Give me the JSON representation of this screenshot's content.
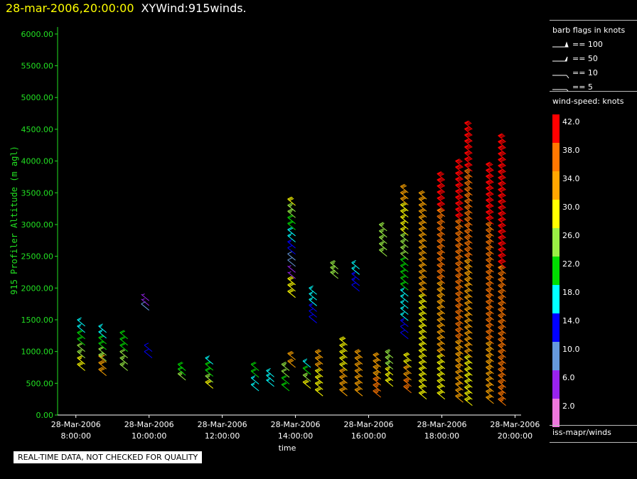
{
  "header": {
    "datetime": "28-mar-2006,20:00:00",
    "product": "XYWind:915winds."
  },
  "legend": {
    "barb_title": "barb flags in knots",
    "barbs": [
      {
        "label": "== 100",
        "knots": 100
      },
      {
        "label": "== 50",
        "knots": 50
      },
      {
        "label": "== 10",
        "knots": 10
      },
      {
        "label": "== 5",
        "knots": 5
      }
    ],
    "colorbar_title": "wind-speed: knots",
    "colorbar": [
      {
        "label": "42.0",
        "color": "#ff0000"
      },
      {
        "label": "38.0",
        "color": "#ff7700"
      },
      {
        "label": "34.0",
        "color": "#ffa500"
      },
      {
        "label": "30.0",
        "color": "#ffff00"
      },
      {
        "label": "26.0",
        "color": "#99ee44"
      },
      {
        "label": "22.0",
        "color": "#00dd00"
      },
      {
        "label": "18.0",
        "color": "#00ffff"
      },
      {
        "label": "14.0",
        "color": "#0000ff"
      },
      {
        "label": "10.0",
        "color": "#6699dd"
      },
      {
        "label": "6.0",
        "color": "#9922ee"
      },
      {
        "label": "2.0",
        "color": "#ee77dd"
      }
    ],
    "source": "iss-mapr/winds"
  },
  "warning": "REAL-TIME DATA, NOT CHECKED FOR QUALITY",
  "chart_data": {
    "type": "scatter",
    "title": "28-mar-2006,20:00:00 XYWind:915winds.",
    "xlabel": "time",
    "ylabel": "915 Profiler Altitude (m agl)",
    "xlim": [
      "2006-03-28 07:30",
      "2006-03-28 20:10"
    ],
    "ylim": [
      0,
      6200
    ],
    "yticks": [
      "0.00",
      "500.00",
      "1000.00",
      "1500.00",
      "2000.00",
      "2500.00",
      "3000.00",
      "3500.00",
      "4000.00",
      "4500.00",
      "5000.00",
      "5500.00",
      "6000.00"
    ],
    "xticks": [
      {
        "date": "28-Mar-2006",
        "time": "8:00:00"
      },
      {
        "date": "28-Mar-2006",
        "time": "10:00:00"
      },
      {
        "date": "28-Mar-2006",
        "time": "12:00:00"
      },
      {
        "date": "28-Mar-2006",
        "time": "14:00:00"
      },
      {
        "date": "28-Mar-2006",
        "time": "16:00:00"
      },
      {
        "date": "28-Mar-2006",
        "time": "18:00:00"
      },
      {
        "date": "28-Mar-2006",
        "time": "20:00:00"
      }
    ],
    "profiles": [
      {
        "time": "08:15",
        "min_alt": 700,
        "max_alt": 1400,
        "speed_low": 30,
        "speed_high": 18
      },
      {
        "time": "08:50",
        "min_alt": 620,
        "max_alt": 830,
        "speed_low": 34,
        "speed_high": 34
      },
      {
        "time": "08:50",
        "min_alt": 850,
        "max_alt": 1300,
        "speed_low": 26,
        "speed_high": 18
      },
      {
        "time": "09:25",
        "min_alt": 700,
        "max_alt": 1200,
        "speed_low": 26,
        "speed_high": 22
      },
      {
        "time": "10:00",
        "min_alt": 1650,
        "max_alt": 1800,
        "speed_low": 10,
        "speed_high": 6
      },
      {
        "time": "10:05",
        "min_alt": 900,
        "max_alt": 1000,
        "speed_low": 14,
        "speed_high": 14
      },
      {
        "time": "11:00",
        "min_alt": 550,
        "max_alt": 700,
        "speed_low": 26,
        "speed_high": 22
      },
      {
        "time": "11:45",
        "min_alt": 420,
        "max_alt": 800,
        "speed_low": 30,
        "speed_high": 18
      },
      {
        "time": "13:00",
        "min_alt": 380,
        "max_alt": 700,
        "speed_low": 18,
        "speed_high": 22
      },
      {
        "time": "13:25",
        "min_alt": 450,
        "max_alt": 600,
        "speed_low": 18,
        "speed_high": 18
      },
      {
        "time": "13:50",
        "min_alt": 380,
        "max_alt": 700,
        "speed_low": 22,
        "speed_high": 26
      },
      {
        "time": "14:00",
        "min_alt": 2150,
        "max_alt": 3300,
        "speed_low": 6,
        "speed_high": 30
      },
      {
        "time": "14:00",
        "min_alt": 1850,
        "max_alt": 2050,
        "speed_low": 30,
        "speed_high": 30
      },
      {
        "time": "14:00",
        "min_alt": 750,
        "max_alt": 870,
        "speed_low": 34,
        "speed_high": 34
      },
      {
        "time": "14:25",
        "min_alt": 420,
        "max_alt": 750,
        "speed_low": 30,
        "speed_high": 18
      },
      {
        "time": "14:35",
        "min_alt": 1450,
        "max_alt": 1900,
        "speed_low": 14,
        "speed_high": 18
      },
      {
        "time": "14:45",
        "min_alt": 300,
        "max_alt": 900,
        "speed_low": 30,
        "speed_high": 34
      },
      {
        "time": "15:10",
        "min_alt": 2150,
        "max_alt": 2300,
        "speed_low": 26,
        "speed_high": 26
      },
      {
        "time": "15:25",
        "min_alt": 300,
        "max_alt": 1100,
        "speed_low": 34,
        "speed_high": 30
      },
      {
        "time": "15:45",
        "min_alt": 1950,
        "max_alt": 2300,
        "speed_low": 14,
        "speed_high": 18
      },
      {
        "time": "15:50",
        "min_alt": 300,
        "max_alt": 900,
        "speed_low": 34,
        "speed_high": 34
      },
      {
        "time": "16:20",
        "min_alt": 280,
        "max_alt": 850,
        "speed_low": 38,
        "speed_high": 34
      },
      {
        "time": "16:30",
        "min_alt": 2500,
        "max_alt": 2900,
        "speed_low": 26,
        "speed_high": 26
      },
      {
        "time": "16:40",
        "min_alt": 450,
        "max_alt": 900,
        "speed_low": 30,
        "speed_high": 26
      },
      {
        "time": "17:05",
        "min_alt": 1200,
        "max_alt": 3500,
        "speed_low": 14,
        "speed_high": 34
      },
      {
        "time": "17:10",
        "min_alt": 350,
        "max_alt": 850,
        "speed_low": 38,
        "speed_high": 30
      },
      {
        "time": "17:35",
        "min_alt": 250,
        "max_alt": 3400,
        "speed_low": 30,
        "speed_high": 34
      },
      {
        "time": "18:05",
        "min_alt": 250,
        "max_alt": 3700,
        "speed_low": 30,
        "speed_high": 42
      },
      {
        "time": "18:35",
        "min_alt": 200,
        "max_alt": 3900,
        "speed_low": 34,
        "speed_high": 42
      },
      {
        "time": "18:50",
        "min_alt": 150,
        "max_alt": 4500,
        "speed_low": 30,
        "speed_high": 42
      },
      {
        "time": "19:25",
        "min_alt": 180,
        "max_alt": 3850,
        "speed_low": 34,
        "speed_high": 42
      },
      {
        "time": "19:45",
        "min_alt": 150,
        "max_alt": 4300,
        "speed_low": 38,
        "speed_high": 42
      }
    ]
  }
}
